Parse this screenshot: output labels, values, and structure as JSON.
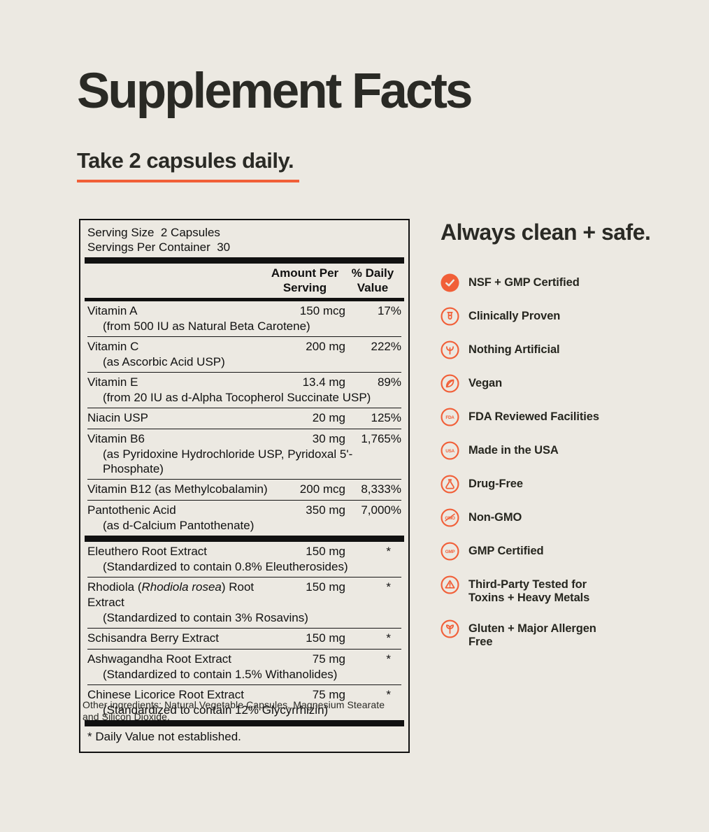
{
  "theme": {
    "accent": "#F15F38",
    "ink": "#111111",
    "background": "#ECE9E2"
  },
  "header": {
    "title": "Supplement Facts",
    "dosage": "Take 2 capsules daily."
  },
  "facts": {
    "serving_size": "Serving Size  2 Capsules",
    "servings_per_container": "Servings Per Container  30",
    "columns": {
      "amount_line1": "Amount Per",
      "amount_line2": "Serving",
      "dv_line1": "% Daily",
      "dv_line2": "Value"
    },
    "rows": [
      {
        "name": "Vitamin A",
        "sub": "(from 500 IU as Natural Beta Carotene)",
        "amount": "150 mcg",
        "dv": "17%"
      },
      {
        "name": "Vitamin C",
        "sub": "(as Ascorbic Acid USP)",
        "amount": "200 mg",
        "dv": "222%"
      },
      {
        "name": "Vitamin E",
        "sub": "(from 20 IU as d-Alpha Tocopherol Succinate USP)",
        "amount": "13.4 mg",
        "dv": "89%"
      },
      {
        "name": "Niacin USP",
        "amount": "20 mg",
        "dv": "125%"
      },
      {
        "name": "Vitamin B6",
        "sub": "(as Pyridoxine Hydrochloride USP, Pyridoxal 5'-Phosphate)",
        "amount": "30 mg",
        "dv": "1,765%"
      },
      {
        "name": "Vitamin B12 (as Methylcobalamin)",
        "amount": "200 mcg",
        "dv": "8,333%"
      },
      {
        "name": "Pantothenic Acid",
        "sub": "(as d-Calcium Pantothenate)",
        "amount": "350 mg",
        "dv": "7,000%",
        "thick_after": true
      },
      {
        "name": "Eleuthero Root Extract",
        "sub": "(Standardized to contain 0.8% Eleutherosides)",
        "amount": "150 mg",
        "dv": "*"
      },
      {
        "name": "Rhodiola (Rhodiola rosea) Root Extract",
        "italic_part": "Rhodiola rosea",
        "sub": "(Standardized to contain 3% Rosavins)",
        "amount": "150 mg",
        "dv": "*"
      },
      {
        "name": "Schisandra Berry Extract",
        "amount": "150 mg",
        "dv": "*"
      },
      {
        "name": "Ashwagandha Root Extract",
        "sub": "(Standardized to contain 1.5% Withanolides)",
        "amount": "75 mg",
        "dv": "*"
      },
      {
        "name": "Chinese Licorice Root Extract",
        "sub": "(Standardized to contain 12% Glycyrrhizin)",
        "amount": "75 mg",
        "dv": "*",
        "thick_after": true
      }
    ],
    "footnote": "* Daily Value not established.",
    "other_ingredients": "Other ingredients: Natural Vegetable Capsules, Magnesium Stearate and Silicon Dioxide."
  },
  "badges": {
    "heading": "Always clean + safe.",
    "items": [
      {
        "icon": "check-icon",
        "label": "NSF + GMP Certified"
      },
      {
        "icon": "test-tube-icon",
        "label": "Clinically Proven"
      },
      {
        "icon": "plant-icon",
        "label": "Nothing Artificial"
      },
      {
        "icon": "leaf-icon",
        "label": "Vegan"
      },
      {
        "icon": "fda-icon",
        "icon_text": "FDA",
        "label": "FDA Reviewed Facilities"
      },
      {
        "icon": "usa-icon",
        "icon_text": "USA",
        "label": "Made in the USA"
      },
      {
        "icon": "flask-icon",
        "label": "Drug-Free"
      },
      {
        "icon": "non-gmo-icon",
        "icon_text": "GMO",
        "label": "Non-GMO"
      },
      {
        "icon": "gmp-icon",
        "icon_text": "GMP",
        "label": "GMP Certified"
      },
      {
        "icon": "warning-triangle-icon",
        "label": "Third-Party Tested for Toxins + Heavy Metals"
      },
      {
        "icon": "sprout-icon",
        "label": "Gluten + Major Allergen Free"
      }
    ]
  }
}
